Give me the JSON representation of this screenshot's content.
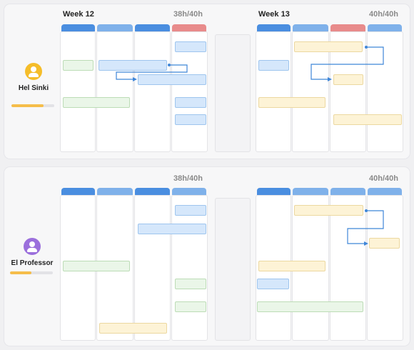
{
  "colors": {
    "day_dark": "#4a8ee0",
    "day_light": "#7fb1ea",
    "day_red": "#e88b8b",
    "connector": "#3f86d8",
    "avatar_1": "#f5bd2a",
    "avatar_2": "#9b6fdc",
    "progress_fill": "#f5bd4a"
  },
  "rows": [
    {
      "user": {
        "name": "Hel Sinki",
        "avatar_icon": "user-icon",
        "progress": 0.75
      },
      "weeks": [
        {
          "label": "Week 12",
          "hours": "38h/40h"
        },
        {
          "label": "Week 13",
          "hours": "40h/40h"
        }
      ]
    },
    {
      "user": {
        "name": "El Professor",
        "avatar_icon": "user-icon",
        "progress": 0.5
      },
      "weeks": [
        {
          "label": "",
          "hours": "38h/40h"
        },
        {
          "label": "",
          "hours": "40h/40h"
        }
      ]
    }
  ]
}
